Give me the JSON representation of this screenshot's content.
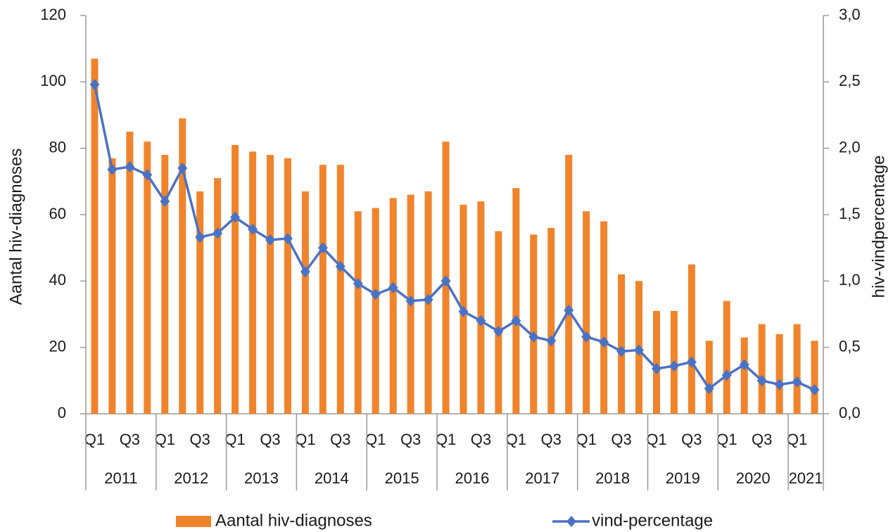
{
  "chart_data": {
    "type": "bar",
    "categories": [
      "Q1",
      null,
      "Q3",
      null,
      "Q1",
      null,
      "Q3",
      null,
      "Q1",
      null,
      "Q3",
      null,
      "Q1",
      null,
      "Q3",
      null,
      "Q1",
      null,
      "Q3",
      null,
      "Q1",
      null,
      "Q3",
      null,
      "Q1",
      null,
      "Q3",
      null,
      "Q1",
      null,
      "Q3",
      null,
      "Q1",
      null,
      "Q3",
      null,
      "Q1",
      null,
      "Q3",
      null,
      "Q1",
      null
    ],
    "years": [
      "2011",
      "2012",
      "2013",
      "2014",
      "2015",
      "2016",
      "2017",
      "2018",
      "2019",
      "2020",
      "2021"
    ],
    "series": [
      {
        "name": "Aantal hiv-diagnoses",
        "type": "bar",
        "color": "#f0842c",
        "values": [
          107,
          77,
          85,
          82,
          78,
          89,
          67,
          71,
          81,
          79,
          78,
          77,
          67,
          75,
          75,
          61,
          62,
          65,
          66,
          67,
          82,
          63,
          64,
          55,
          68,
          54,
          56,
          78,
          61,
          58,
          42,
          40,
          31,
          31,
          45,
          22,
          34,
          23,
          27,
          24,
          27,
          22
        ]
      },
      {
        "name": "vind-percentage",
        "type": "line",
        "axis": "y2",
        "color": "#4a72c4",
        "values": [
          2.48,
          1.84,
          1.86,
          1.8,
          1.6,
          1.85,
          1.33,
          1.36,
          1.48,
          1.39,
          1.31,
          1.32,
          1.07,
          1.25,
          1.11,
          0.98,
          0.9,
          0.95,
          0.85,
          0.86,
          1.0,
          0.77,
          0.7,
          0.62,
          0.7,
          0.58,
          0.55,
          0.78,
          0.58,
          0.54,
          0.47,
          0.48,
          0.34,
          0.36,
          0.39,
          0.19,
          0.29,
          0.37,
          0.25,
          0.22,
          0.24,
          0.18
        ]
      }
    ],
    "ylabel": "Aantal hiv-diagnoses",
    "y2label": "hiv-vindpercentage",
    "ylim": [
      0,
      120
    ],
    "yticks": [
      0,
      20,
      40,
      60,
      80,
      100,
      120
    ],
    "y2lim": [
      0,
      3
    ],
    "y2ticks": [
      {
        "value": 0,
        "label": "0,0"
      },
      {
        "value": 0.5,
        "label": "0,5"
      },
      {
        "value": 1,
        "label": "1,0"
      },
      {
        "value": 1.5,
        "label": "1,5"
      },
      {
        "value": 2,
        "label": "2,0"
      },
      {
        "value": 2.5,
        "label": "2,5"
      },
      {
        "value": 3,
        "label": "3,0"
      }
    ],
    "legend": "bottom",
    "grid": false
  }
}
